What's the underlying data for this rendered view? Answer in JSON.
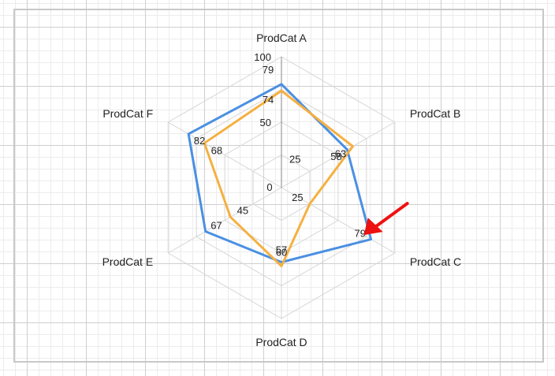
{
  "chart_data": {
    "type": "radar",
    "categories": [
      "ProdCat A",
      "ProdCat B",
      "ProdCat C",
      "ProdCat D",
      "ProdCat E",
      "ProdCat F"
    ],
    "radial_ticks": [
      0,
      25,
      50,
      100
    ],
    "rmax": 100,
    "series": [
      {
        "values": [
          79,
          58,
          79,
          57,
          67,
          82
        ],
        "color": "#4a90e2"
      },
      {
        "values": [
          74,
          63,
          25,
          60,
          45,
          68
        ],
        "color": "#f5b041"
      }
    ],
    "annotation": {
      "type": "arrow",
      "color": "#ee1111",
      "target_category": "ProdCat C"
    }
  }
}
